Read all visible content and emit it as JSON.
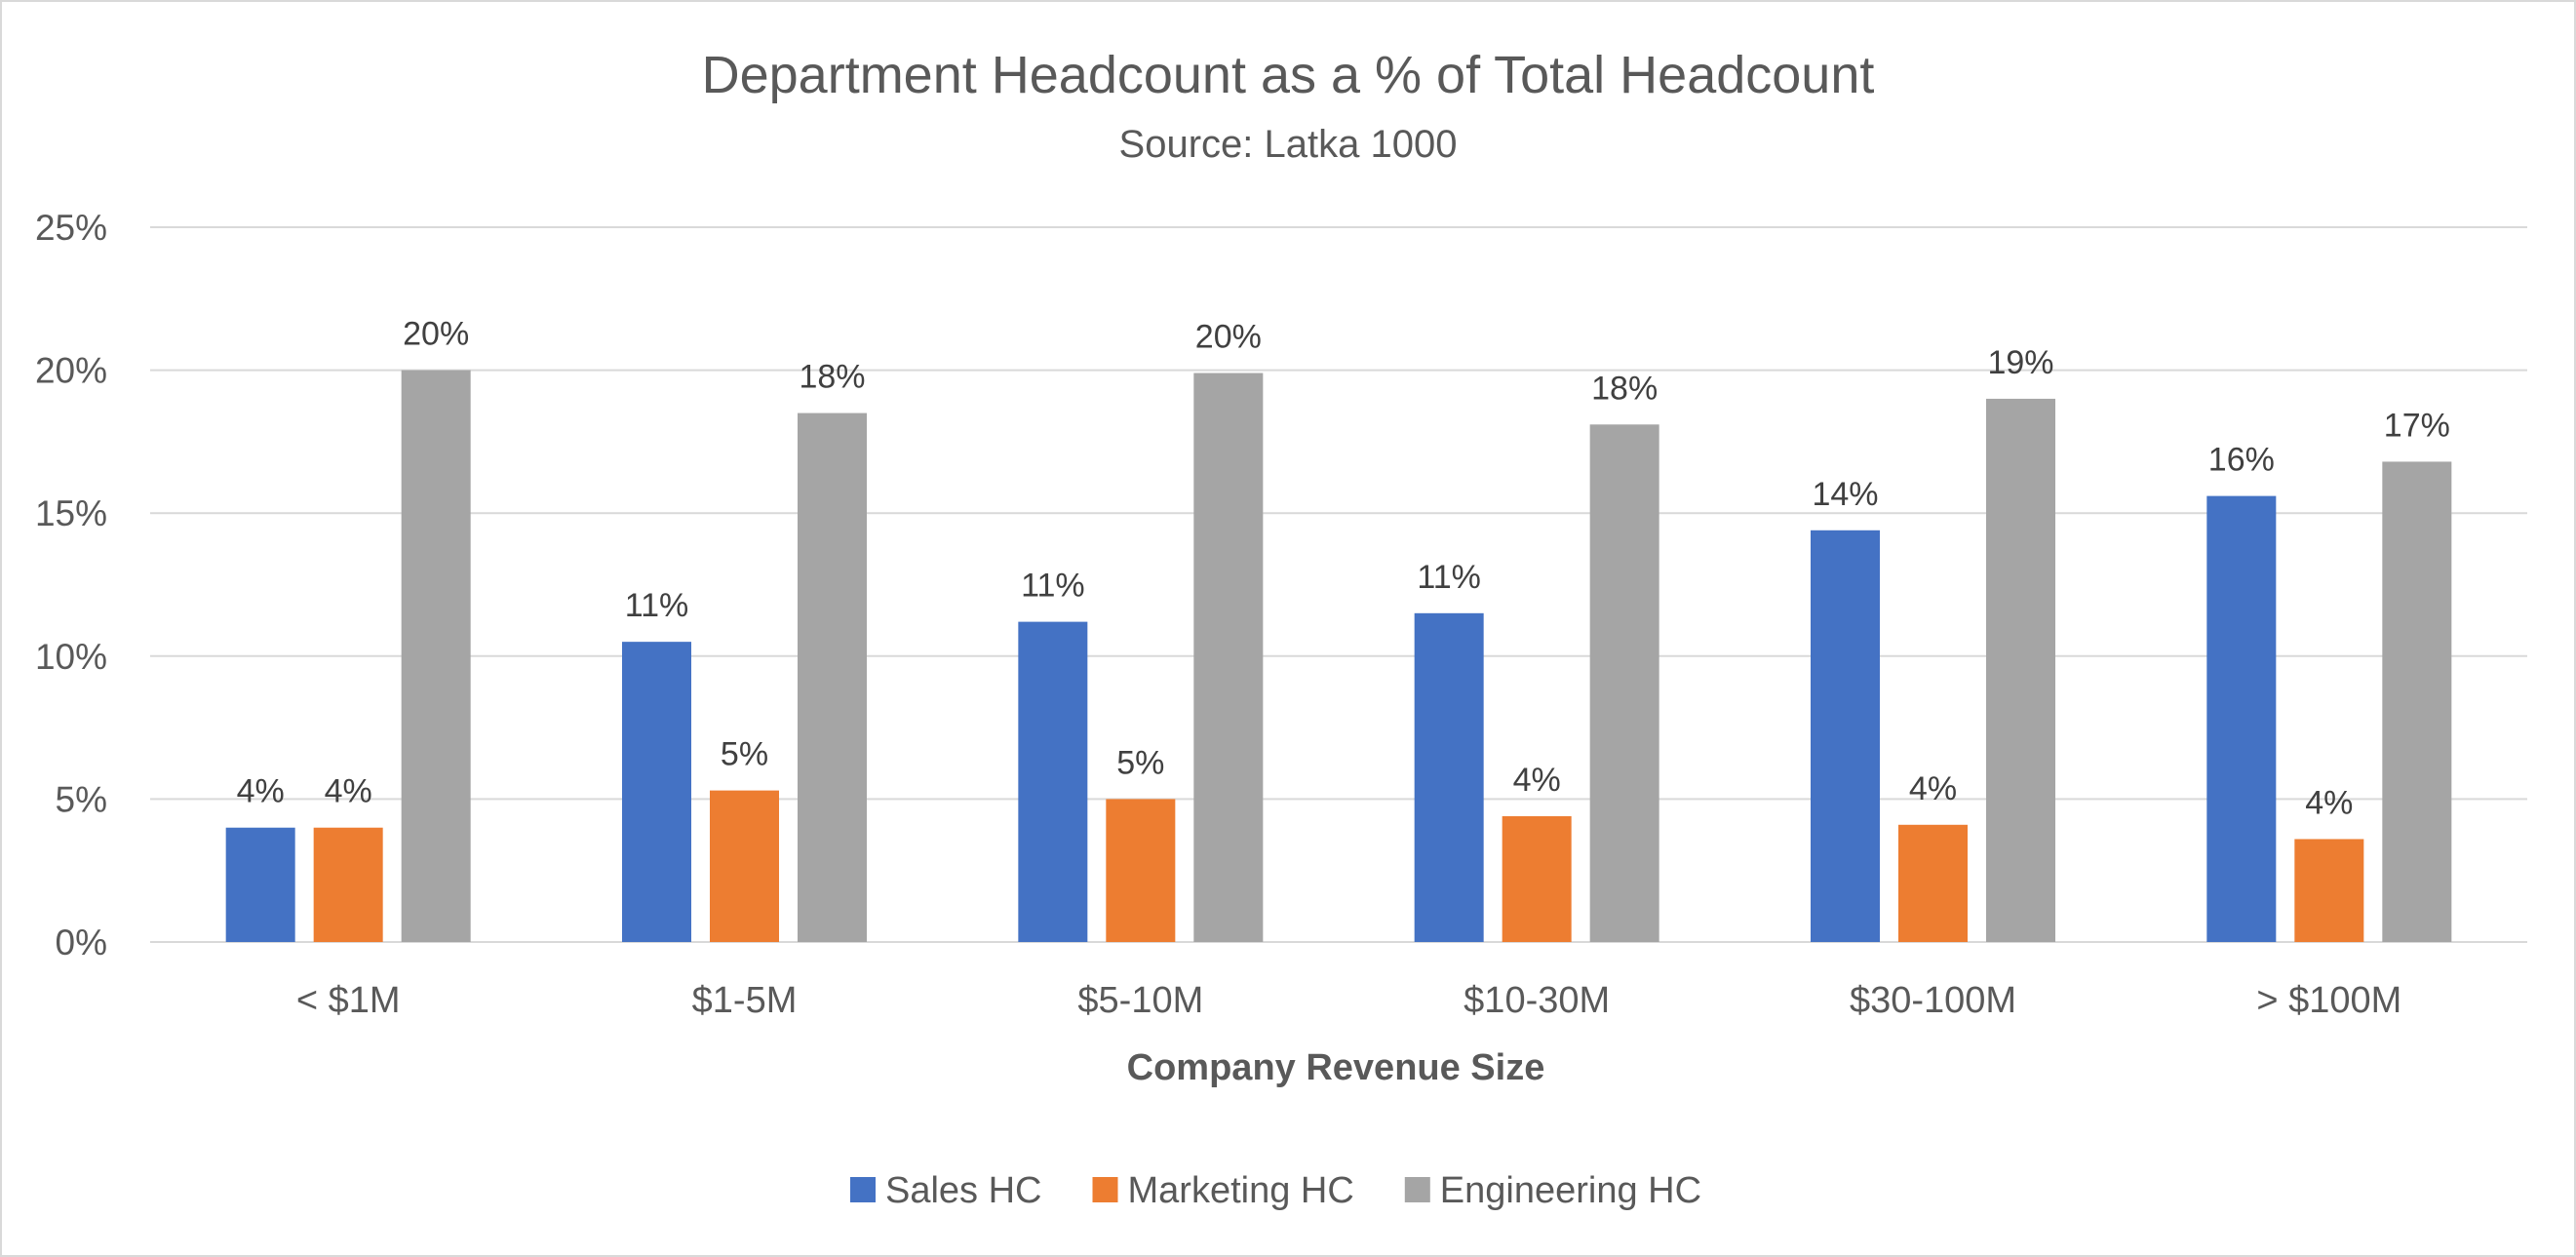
{
  "chart_data": {
    "type": "bar",
    "title": "Department Headcount as a % of Total Headcount",
    "subtitle": "Source:  Latka 1000",
    "xlabel": "Company Revenue Size",
    "ylabel": "",
    "ylim": [
      0,
      25
    ],
    "yticks": [
      "0%",
      "5%",
      "10%",
      "15%",
      "20%",
      "25%"
    ],
    "categories": [
      "< $1M",
      "$1-5M",
      "$5-10M",
      "$10-30M",
      "$30-100M",
      "> $100M"
    ],
    "series": [
      {
        "name": "Sales HC",
        "color": "#4472C4",
        "values": [
          4.0,
          10.5,
          11.2,
          11.5,
          14.4,
          15.6
        ],
        "labels": [
          "4%",
          "11%",
          "11%",
          "11%",
          "14%",
          "16%"
        ]
      },
      {
        "name": "Marketing HC",
        "color": "#ED7D31",
        "values": [
          4.0,
          5.3,
          5.0,
          4.4,
          4.1,
          3.6
        ],
        "labels": [
          "4%",
          "5%",
          "5%",
          "4%",
          "4%",
          "4%"
        ]
      },
      {
        "name": "Engineering HC",
        "color": "#A5A5A5",
        "values": [
          20.0,
          18.5,
          19.9,
          18.1,
          19.0,
          16.8
        ],
        "labels": [
          "20%",
          "18%",
          "20%",
          "18%",
          "19%",
          "17%"
        ]
      }
    ],
    "grid": true,
    "legend_position": "bottom"
  }
}
